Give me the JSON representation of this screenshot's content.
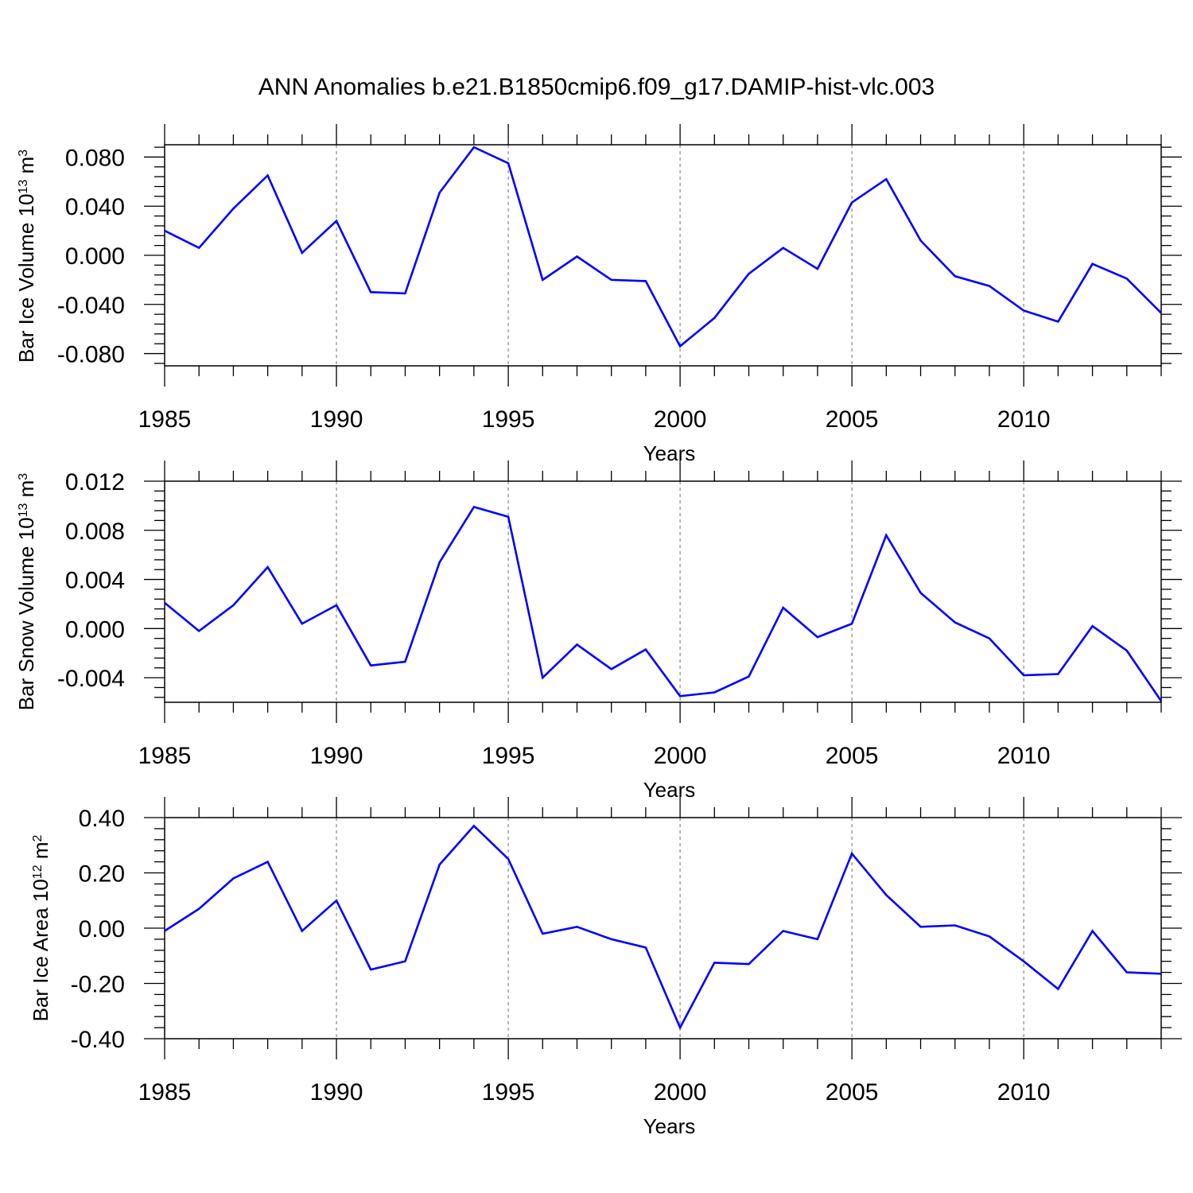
{
  "figure": {
    "title": "ANN Anomalies b.e21.B1850cmip6.f09_g17.DAMIP-hist-vlc.003"
  },
  "chart_data": [
    {
      "type": "line",
      "ylabel_main": "Bar Ice Volume 10",
      "ylabel_exp": "13",
      "ylabel_unit": " m",
      "ylabel_unit_exp": "3",
      "xlabel": "Years",
      "xlim": [
        1985,
        2014
      ],
      "ylim": [
        -0.09,
        0.09
      ],
      "x_ticks": [
        1985,
        1990,
        1995,
        2000,
        2005,
        2010
      ],
      "x_tick_labels": [
        "1985",
        "1990",
        "1995",
        "2000",
        "2005",
        "2010"
      ],
      "y_ticks": [
        0.08,
        0.04,
        0.0,
        -0.04,
        -0.08
      ],
      "y_tick_labels": [
        "0.080",
        "0.040",
        "0.000",
        "-0.040",
        "-0.080"
      ],
      "grid_x": [
        1990,
        1995,
        2000,
        2005,
        2010
      ],
      "line_color": "#0000ff",
      "x": [
        1985,
        1986,
        1987,
        1988,
        1989,
        1990,
        1991,
        1992,
        1993,
        1994,
        1995,
        1996,
        1997,
        1998,
        1999,
        2000,
        2001,
        2002,
        2003,
        2004,
        2005,
        2006,
        2007,
        2008,
        2009,
        2010,
        2011,
        2012,
        2013,
        2014
      ],
      "y": [
        0.02,
        0.006,
        0.038,
        0.065,
        0.002,
        0.028,
        -0.03,
        -0.031,
        0.051,
        0.088,
        0.075,
        -0.02,
        -0.001,
        -0.02,
        -0.021,
        -0.074,
        -0.051,
        -0.015,
        0.006,
        -0.011,
        0.043,
        0.062,
        0.012,
        -0.017,
        -0.025,
        -0.045,
        -0.054,
        -0.007,
        -0.019,
        -0.047
      ]
    },
    {
      "type": "line",
      "ylabel_main": "Bar Snow Volume 10",
      "ylabel_exp": "13",
      "ylabel_unit": " m",
      "ylabel_unit_exp": "3",
      "xlabel": "Years",
      "xlim": [
        1985,
        2014
      ],
      "ylim": [
        -0.006,
        0.012
      ],
      "x_ticks": [
        1985,
        1990,
        1995,
        2000,
        2005,
        2010
      ],
      "x_tick_labels": [
        "1985",
        "1990",
        "1995",
        "2000",
        "2005",
        "2010"
      ],
      "y_ticks": [
        0.012,
        0.008,
        0.004,
        0.0,
        -0.004
      ],
      "y_tick_labels": [
        "0.012",
        "0.008",
        "0.004",
        "0.000",
        "-0.004"
      ],
      "grid_x": [
        1990,
        1995,
        2000,
        2005,
        2010
      ],
      "line_color": "#0000ff",
      "x": [
        1985,
        1986,
        1987,
        1988,
        1989,
        1990,
        1991,
        1992,
        1993,
        1994,
        1995,
        1996,
        1997,
        1998,
        1999,
        2000,
        2001,
        2002,
        2003,
        2004,
        2005,
        2006,
        2007,
        2008,
        2009,
        2010,
        2011,
        2012,
        2013,
        2014
      ],
      "y": [
        0.0021,
        -0.0002,
        0.0019,
        0.005,
        0.0004,
        0.0019,
        -0.003,
        -0.0027,
        0.0054,
        0.0099,
        0.0091,
        -0.004,
        -0.0013,
        -0.0033,
        -0.0017,
        -0.0055,
        -0.0052,
        -0.0039,
        0.0017,
        -0.0007,
        0.0004,
        0.0076,
        0.0029,
        0.0005,
        -0.0008,
        -0.0038,
        -0.0037,
        0.0002,
        -0.0018,
        -0.0059
      ]
    },
    {
      "type": "line",
      "ylabel_main": "Bar Ice Area 10",
      "ylabel_exp": "12",
      "ylabel_unit": " m",
      "ylabel_unit_exp": "2",
      "xlabel": "Years",
      "xlim": [
        1985,
        2014
      ],
      "ylim": [
        -0.4,
        0.4
      ],
      "x_ticks": [
        1985,
        1990,
        1995,
        2000,
        2005,
        2010
      ],
      "x_tick_labels": [
        "1985",
        "1990",
        "1995",
        "2000",
        "2005",
        "2010"
      ],
      "y_ticks": [
        0.4,
        0.2,
        0.0,
        -0.2,
        -0.4
      ],
      "y_tick_labels": [
        "0.40",
        "0.20",
        "0.00",
        "-0.20",
        "-0.40"
      ],
      "grid_x": [
        1990,
        1995,
        2000,
        2005,
        2010
      ],
      "line_color": "#0000ff",
      "x": [
        1985,
        1986,
        1987,
        1988,
        1989,
        1990,
        1991,
        1992,
        1993,
        1994,
        1995,
        1996,
        1997,
        1998,
        1999,
        2000,
        2001,
        2002,
        2003,
        2004,
        2005,
        2006,
        2007,
        2008,
        2009,
        2010,
        2011,
        2012,
        2013,
        2014
      ],
      "y": [
        -0.01,
        0.07,
        0.18,
        0.24,
        -0.01,
        0.1,
        -0.15,
        -0.12,
        0.23,
        0.37,
        0.25,
        -0.02,
        0.005,
        -0.04,
        -0.07,
        -0.36,
        -0.125,
        -0.13,
        -0.01,
        -0.04,
        0.27,
        0.12,
        0.005,
        0.01,
        -0.03,
        -0.12,
        -0.22,
        -0.01,
        -0.16,
        -0.165
      ]
    }
  ]
}
